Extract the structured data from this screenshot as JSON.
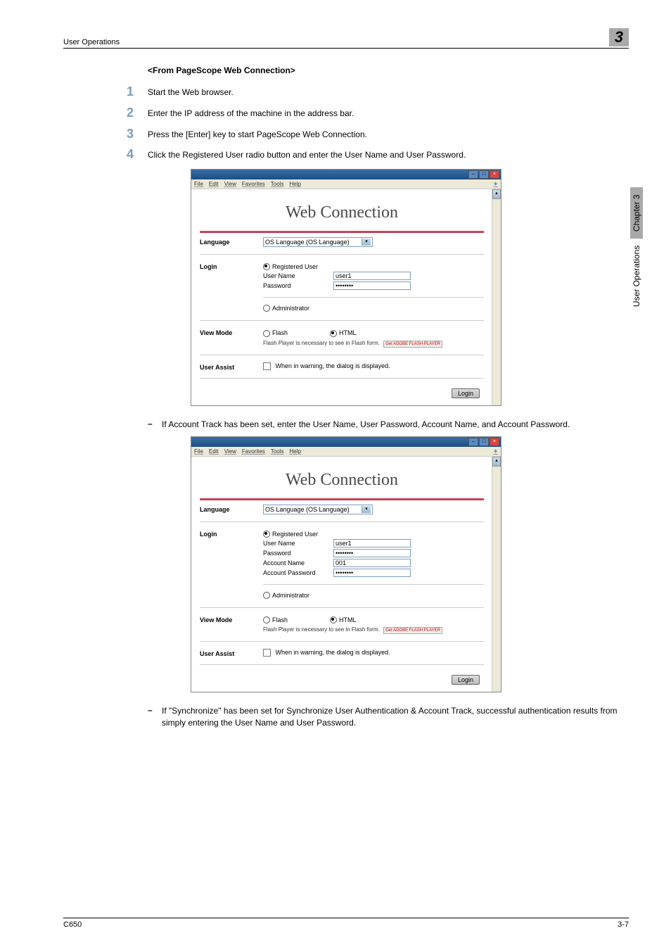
{
  "header": {
    "left": "User Operations",
    "badge": "3"
  },
  "section_title": "<From PageScope Web Connection>",
  "steps": [
    {
      "num": "1",
      "text": "Start the Web browser."
    },
    {
      "num": "2",
      "text": "Enter the IP address of the machine in the address bar."
    },
    {
      "num": "3",
      "text": "Press the [Enter] key to start PageScope Web Connection."
    },
    {
      "num": "4",
      "text": "Click the Registered User radio button and enter the User Name and User Password."
    }
  ],
  "bullet1": "If Account Track has been set, enter the User Name, User Password, Account Name, and Account Password.",
  "bullet2": "If \"Synchronize\" has been set for Synchronize User Authentication & Account Track, successful authentication results from simply entering the User Name and User Password.",
  "webconn": {
    "menus": [
      "File",
      "Edit",
      "View",
      "Favorites",
      "Tools",
      "Help"
    ],
    "title": "Web Connection",
    "language_label": "Language",
    "language_value": "OS Language (OS Language)",
    "login_label": "Login",
    "registered_user": "Registered User",
    "user_name_label": "User Name",
    "user_name_value": "user1",
    "password_label": "Password",
    "password_value": "••••••••",
    "account_name_label": "Account Name",
    "account_name_value": "001",
    "account_password_label": "Account Password",
    "account_password_value": "••••••••",
    "administrator": "Administrator",
    "viewmode_label": "View Mode",
    "flash": "Flash",
    "html": "HTML",
    "flash_note": "Flash Player is necessary to see in Flash form.",
    "flash_logo": "Get ADOBE FLASH PLAYER",
    "userassist_label": "User Assist",
    "userassist_text": "When in warning, the dialog is displayed.",
    "login_btn": "Login"
  },
  "side": {
    "chapter": "Chapter 3",
    "section": "User Operations"
  },
  "footer": {
    "left": "C650",
    "right": "3-7"
  }
}
